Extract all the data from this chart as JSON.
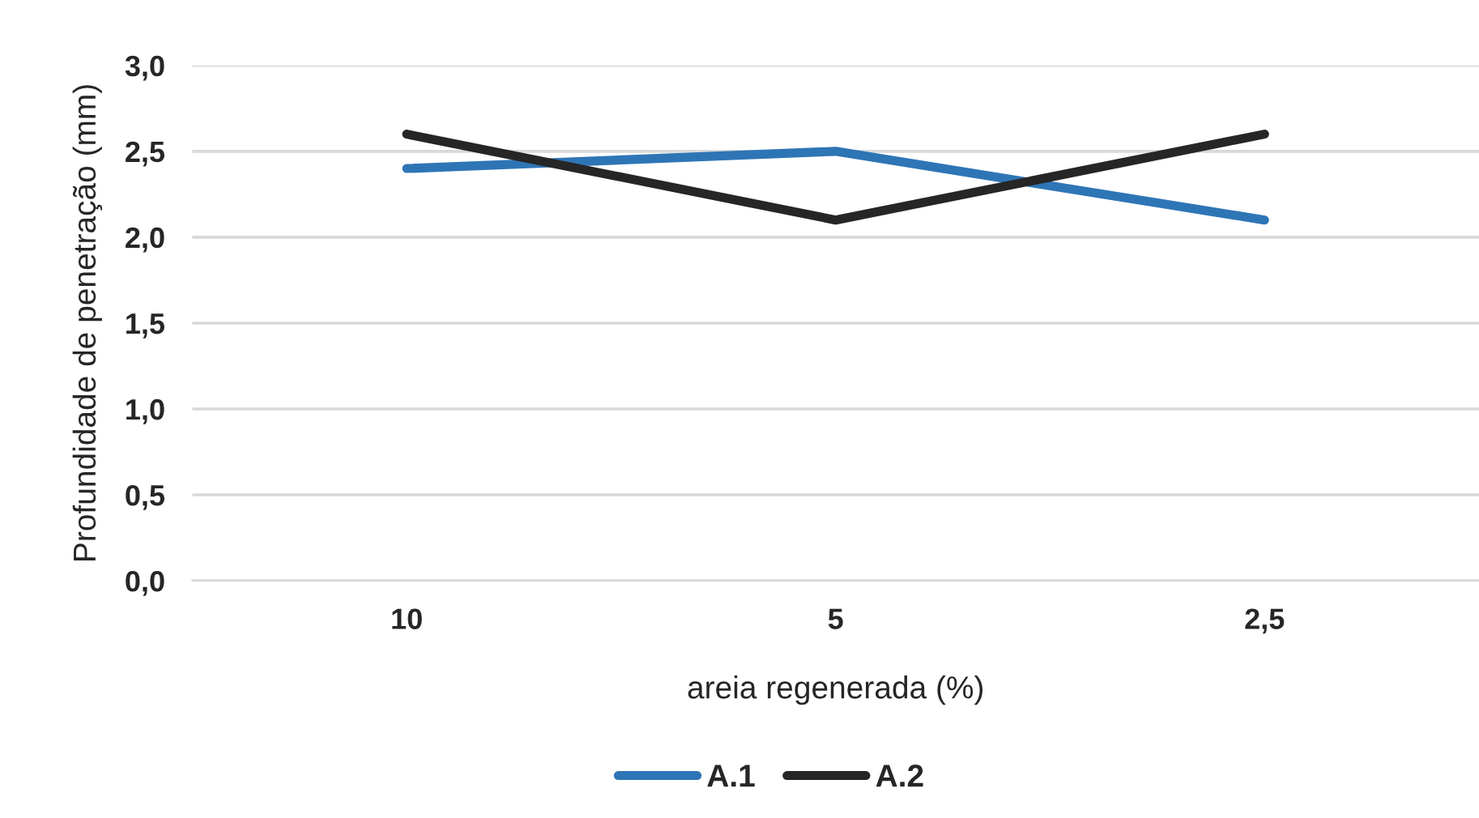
{
  "chart_data": {
    "type": "line",
    "xlabel": "areia regenerada (%)",
    "ylabel": "Profundidade de penetração (mm)",
    "categories": [
      "10",
      "5",
      "2,5"
    ],
    "series": [
      {
        "name": "A.1",
        "color": "#2e75b6",
        "values": [
          2.4,
          2.5,
          2.1
        ]
      },
      {
        "name": "A.2",
        "color": "#262626",
        "values": [
          2.6,
          2.1,
          2.6
        ]
      }
    ],
    "ylim": [
      0,
      3
    ],
    "yticks": [
      {
        "value": 0,
        "label": "0,0"
      },
      {
        "value": 0.5,
        "label": "0,5"
      },
      {
        "value": 1,
        "label": "1,0"
      },
      {
        "value": 1.5,
        "label": "1,5"
      },
      {
        "value": 2,
        "label": "2,0"
      },
      {
        "value": 2.5,
        "label": "2,5"
      },
      {
        "value": 3,
        "label": "3,0"
      }
    ],
    "grid": "y",
    "legend": "bottom",
    "marker": "none",
    "line_style": "solid"
  }
}
